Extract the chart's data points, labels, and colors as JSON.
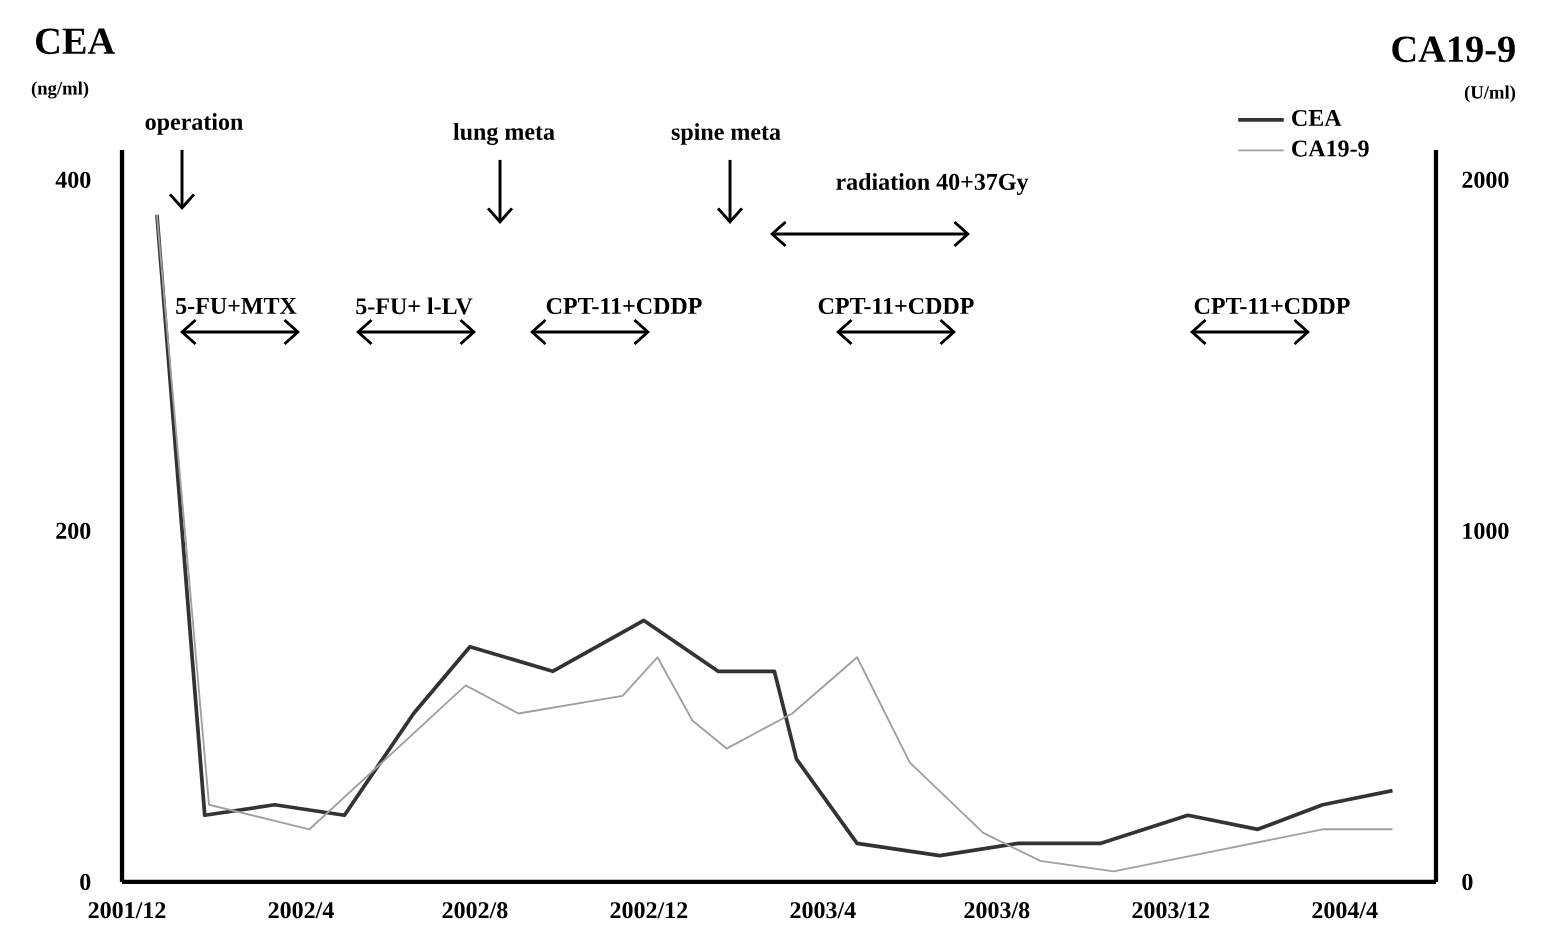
{
  "chart_data": {
    "type": "line",
    "ylabel": "CEA",
    "y2label": "CA19-9",
    "xlim": [
      "2001-11-28",
      "2004-06-04"
    ],
    "xticks": [
      {
        "value": "2001-12",
        "label": "2001/12"
      },
      {
        "value": "2002-04",
        "label": "2002/4"
      },
      {
        "value": "2002-08",
        "label": "2002/8"
      },
      {
        "value": "2002-12",
        "label": "2002/12"
      },
      {
        "value": "2003-04",
        "label": "2003/4"
      },
      {
        "value": "2003-08",
        "label": "2003/8"
      },
      {
        "value": "2003-12",
        "label": "2003/12"
      },
      {
        "value": "2004-04",
        "label": "2004/4"
      }
    ],
    "ylim": [
      0,
      417
    ],
    "yticks": [
      0,
      200,
      400
    ],
    "y2lim": [
      0,
      2085
    ],
    "y2ticks": [
      0,
      1000,
      2000
    ],
    "legend": "top right",
    "series": [
      {
        "name": "CEA",
        "color": "#333333",
        "x": [
          "2001-12-22",
          "2002-01-25",
          "2002-03-13",
          "2002-05-01",
          "2002-06-19",
          "2002-07-28",
          "2002-09-25",
          "2002-11-28",
          "2003-01-19",
          "2003-02-28",
          "2003-03-13",
          "2003-04-25",
          "2003-06-22",
          "2003-08-16",
          "2003-10-13",
          "2003-12-13",
          "2004-02-01",
          "2004-03-16",
          "2004-05-04"
        ],
        "values": [
          380,
          38,
          44,
          38,
          96,
          134,
          120,
          149,
          120,
          120,
          70,
          22,
          15,
          22,
          22,
          38,
          30,
          44,
          52
        ]
      },
      {
        "name": "CA19-9",
        "color": "#a0a0a0",
        "axis": "y2",
        "x": [
          "2001-12-22",
          "2002-01-28",
          "2002-04-07",
          "2002-07-25",
          "2002-09-01",
          "2002-11-13",
          "2002-12-07",
          "2003-01-01",
          "2003-01-25",
          "2003-03-10",
          "2003-04-25",
          "2003-06-01",
          "2003-07-22",
          "2003-09-01",
          "2003-10-22",
          "2003-12-22",
          "2004-03-16",
          "2004-05-04"
        ],
        "values": [
          1900,
          220,
          150,
          560,
          480,
          530,
          640,
          460,
          380,
          480,
          640,
          340,
          140,
          60,
          30,
          80,
          150,
          150
        ]
      }
    ],
    "annotations": [
      "operation",
      "lung meta",
      "spine meta",
      "radiation 40+37Gy",
      "5-FU+MTX",
      "5-FU+ l-LV",
      "CPT-11+CDDP",
      "CPT-11+CDDP",
      "CPT-11+CDDP",
      "(ng/ml)",
      "(U/ml)"
    ]
  }
}
